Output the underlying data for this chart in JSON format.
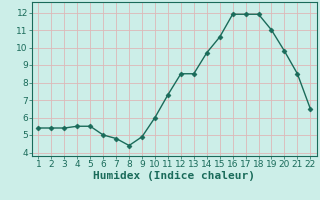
{
  "x": [
    1,
    2,
    3,
    4,
    5,
    6,
    7,
    8,
    9,
    10,
    11,
    12,
    13,
    14,
    15,
    16,
    17,
    18,
    19,
    20,
    21,
    22
  ],
  "y": [
    5.4,
    5.4,
    5.4,
    5.5,
    5.5,
    5.0,
    4.8,
    4.4,
    4.9,
    6.0,
    7.3,
    8.5,
    8.5,
    9.7,
    10.6,
    11.9,
    11.9,
    11.9,
    11.0,
    9.8,
    8.5,
    6.5
  ],
  "line_color": "#1a6b5a",
  "marker": "D",
  "markersize": 2.5,
  "linewidth": 1.0,
  "xlabel": "Humidex (Indice chaleur)",
  "xlabel_fontsize": 8,
  "bg_color": "#cceee8",
  "grid_color": "#ddb8b8",
  "ylim": [
    3.8,
    12.6
  ],
  "xlim": [
    0.5,
    22.5
  ],
  "yticks": [
    4,
    5,
    6,
    7,
    8,
    9,
    10,
    11,
    12
  ],
  "xticks": [
    1,
    2,
    3,
    4,
    5,
    6,
    7,
    8,
    9,
    10,
    11,
    12,
    13,
    14,
    15,
    16,
    17,
    18,
    19,
    20,
    21,
    22
  ],
  "tick_fontsize": 6.5,
  "axis_color": "#1a6b5a"
}
